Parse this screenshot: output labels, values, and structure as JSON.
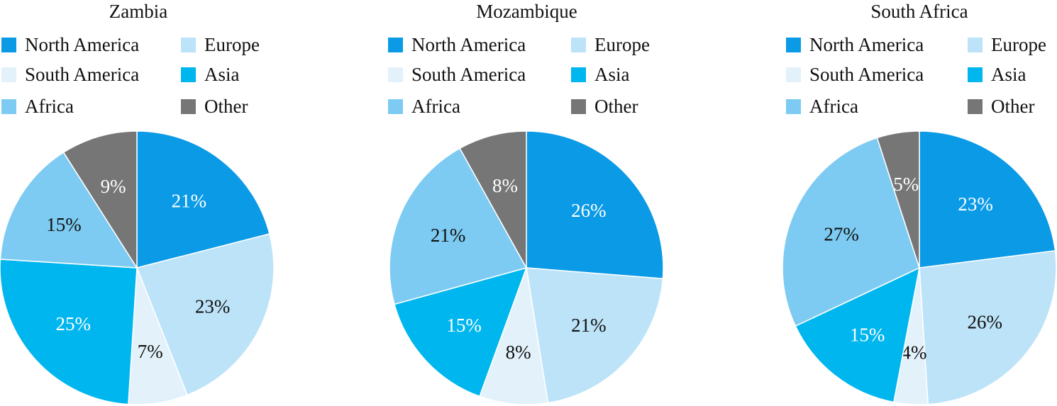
{
  "colors": {
    "North America": "#0a9ae6",
    "Europe": "#bde3f8",
    "South America": "#e3f1fb",
    "Asia": "#00b6ee",
    "Africa": "#7dcbf2",
    "Other": "#767676"
  },
  "label_colors": {
    "North America": "#ffffff",
    "Europe": "#111111",
    "South America": "#111111",
    "Asia": "#ffffff",
    "Africa": "#111111",
    "Other": "#ffffff"
  },
  "chart_data": [
    {
      "type": "pie",
      "title": "Zambia",
      "legend_position": "top",
      "categories": [
        "North America",
        "Europe",
        "South America",
        "Asia",
        "Africa",
        "Other"
      ],
      "values": [
        21,
        23,
        7,
        25,
        15,
        9
      ],
      "labels": [
        "21%",
        "23%",
        "7%",
        "25%",
        "15%",
        "9%"
      ]
    },
    {
      "type": "pie",
      "title": "Mozambique",
      "legend_position": "top",
      "categories": [
        "North America",
        "Europe",
        "South America",
        "Asia",
        "Africa",
        "Other"
      ],
      "values": [
        26,
        21,
        8,
        15,
        21,
        8
      ],
      "labels": [
        "26%",
        "21%",
        "8%",
        "15%",
        "21%",
        "8%"
      ]
    },
    {
      "type": "pie",
      "title": "South Africa",
      "legend_position": "top",
      "categories": [
        "North America",
        "Europe",
        "South America",
        "Asia",
        "Africa",
        "Other"
      ],
      "values": [
        23,
        26,
        4,
        15,
        27,
        5
      ],
      "labels": [
        "23%",
        "26%",
        "4%",
        "15%",
        "27%",
        "5%"
      ]
    }
  ]
}
